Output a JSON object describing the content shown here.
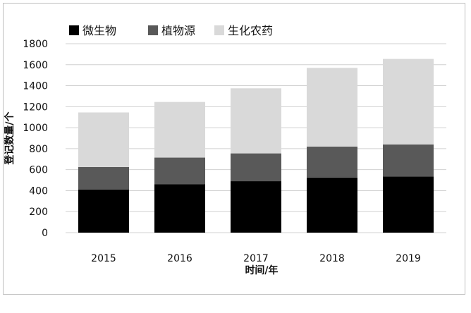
{
  "chart_data": {
    "type": "bar",
    "stacked": true,
    "categories": [
      "2015",
      "2016",
      "2017",
      "2018",
      "2019"
    ],
    "series": [
      {
        "name": "微生物",
        "values": [
          410,
          460,
          490,
          525,
          535
        ],
        "color": "#000000"
      },
      {
        "name": "植物源",
        "values": [
          215,
          255,
          265,
          295,
          305
        ],
        "color": "#595959"
      },
      {
        "name": "生化农药",
        "values": [
          520,
          530,
          620,
          750,
          815
        ],
        "color": "#d9d9d9"
      }
    ],
    "xlabel": "时间/年",
    "ylabel": "登记数量/个",
    "yticks": [
      "0",
      "200",
      "400",
      "600",
      "800",
      "1000",
      "1200",
      "1400",
      "1600",
      "1800"
    ],
    "ylim": [
      0,
      1800
    ],
    "grid": true,
    "legend": "top"
  }
}
